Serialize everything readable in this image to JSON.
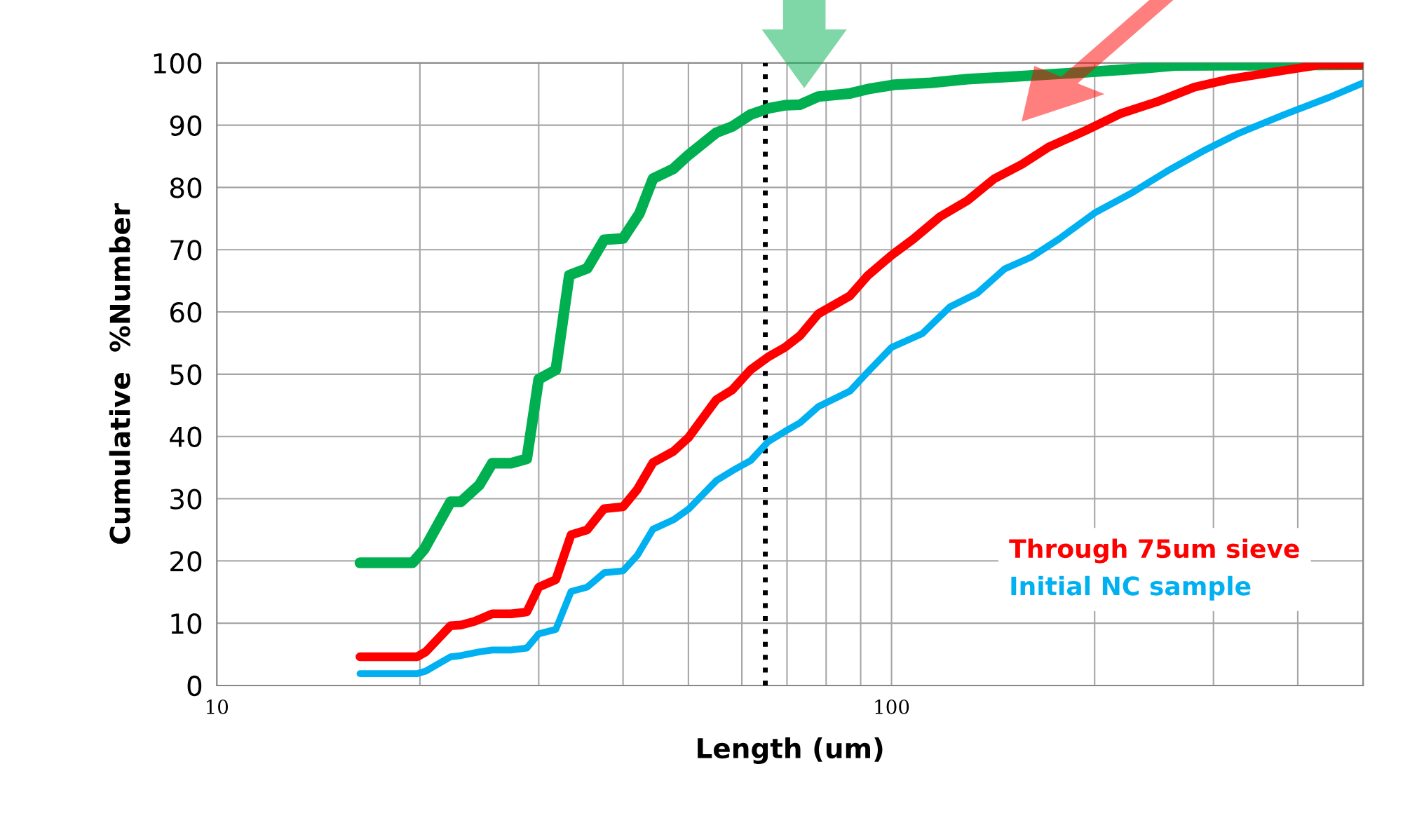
{
  "chart_data": {
    "type": "line",
    "xlabel": "Length (um)",
    "ylabel": "Cumulative  %Number",
    "log": "x",
    "xlim": [
      10,
      500
    ],
    "ylim": [
      0,
      100
    ],
    "xticks": [
      10,
      {
        "value": 20,
        "label": null
      },
      {
        "value": 30,
        "label": null
      },
      {
        "value": 40,
        "label": null
      },
      {
        "value": 50,
        "label": null
      },
      {
        "value": 60,
        "label": null
      },
      {
        "value": 70,
        "label": null
      },
      {
        "value": 80,
        "label": null
      },
      {
        "value": 90,
        "label": null
      },
      100,
      {
        "value": 200,
        "label": null
      },
      {
        "value": 300,
        "label": null
      },
      {
        "value": 400,
        "label": null
      },
      {
        "value": 500,
        "label": null
      }
    ],
    "yticks": [
      0,
      10,
      20,
      30,
      40,
      50,
      60,
      70,
      80,
      90,
      100
    ],
    "grid": true,
    "legend": "bottom right",
    "marker": "none",
    "line_style": "solid",
    "ref_lines": [
      {
        "axis": "x",
        "value": 65,
        "label": null,
        "color": "#000000",
        "line_style": "dotted"
      }
    ],
    "series": [
      {
        "color": "#00b050",
        "x": [
          16.3,
          19.5,
          20.3,
          22.2,
          23.0,
          24.5,
          25.6,
          27.3,
          28.8,
          30,
          31.8,
          33.3,
          35.4,
          37.5,
          40,
          42.3,
          44.3,
          47.5,
          50,
          55,
          58.1,
          61.8,
          65.7,
          69.5,
          73.2,
          77.9,
          86.8,
          92.3,
          101,
          114.5,
          129.6,
          151,
          193.6,
          233,
          263,
          500
        ],
        "values": [
          19.7,
          19.7,
          21.9,
          29.5,
          29.5,
          32.2,
          35.7,
          35.7,
          36.4,
          49.2,
          50.7,
          65.9,
          67.0,
          71.6,
          71.8,
          75.8,
          81.4,
          83.0,
          85.2,
          88.8,
          89.8,
          91.7,
          92.7,
          93.2,
          93.3,
          94.6,
          95.1,
          95.8,
          96.5,
          96.8,
          97.4,
          97.8,
          98.5,
          99.1,
          99.6,
          99.7
        ]
      },
      {
        "name": "Through 75um sieve",
        "color": "#ff0000",
        "x": [
          16.3,
          19.8,
          20.4,
          22.2,
          23.0,
          24.1,
          25.6,
          27.3,
          28.8,
          30,
          31.8,
          33.5,
          35.4,
          37.5,
          40,
          42,
          44.3,
          47.5,
          50,
          55,
          58.1,
          61.8,
          65.7,
          69.5,
          73.2,
          77.9,
          86.8,
          92.3,
          100,
          107.7,
          118,
          129.6,
          142,
          156,
          171,
          193.6,
          219,
          248,
          281,
          317,
          382,
          432,
          500
        ],
        "values": [
          4.6,
          4.6,
          5.4,
          9.6,
          9.7,
          10.3,
          11.5,
          11.5,
          11.8,
          15.8,
          17.0,
          24.2,
          25.0,
          28.4,
          28.7,
          31.5,
          35.8,
          37.6,
          39.8,
          45.9,
          47.5,
          50.7,
          52.8,
          54.3,
          56.2,
          59.7,
          62.6,
          65.9,
          69.1,
          71.7,
          75.3,
          77.9,
          81.4,
          83.7,
          86.5,
          89.1,
          91.9,
          93.8,
          96.1,
          97.4,
          98.8,
          99.7,
          99.7
        ]
      },
      {
        "name": "Initial NC sample",
        "color": "#00b0f0",
        "x": [
          16.3,
          19.8,
          20.4,
          22.2,
          23.0,
          24.5,
          25.6,
          27.3,
          28.8,
          30,
          31.8,
          33.5,
          35.4,
          37.5,
          40,
          42,
          44.3,
          47.5,
          50,
          55,
          58.1,
          61.8,
          65.7,
          69.5,
          73.2,
          77.9,
          86.8,
          92.3,
          100,
          111,
          122,
          134,
          147,
          161,
          177,
          200,
          226,
          256,
          289,
          327,
          382,
          446,
          500
        ],
        "values": [
          1.9,
          1.9,
          2.3,
          4.6,
          4.8,
          5.4,
          5.7,
          5.7,
          6.0,
          8.3,
          9.0,
          15.1,
          15.8,
          18.1,
          18.4,
          20.9,
          25.1,
          26.6,
          28.3,
          32.9,
          34.5,
          36.1,
          39.2,
          40.8,
          42.2,
          44.8,
          47.3,
          50.4,
          54.3,
          56.5,
          60.8,
          63.0,
          66.9,
          68.8,
          71.7,
          75.9,
          79.0,
          82.6,
          85.8,
          88.7,
          91.7,
          94.5,
          96.8
        ]
      }
    ]
  }
}
